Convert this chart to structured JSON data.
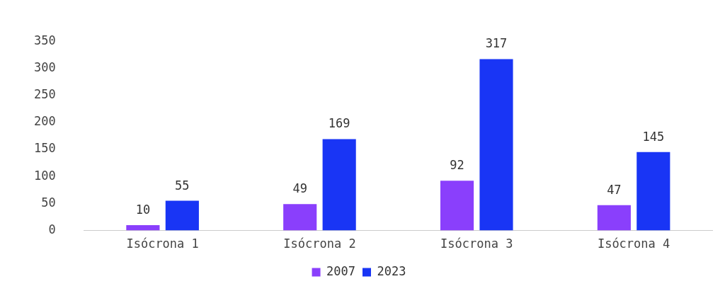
{
  "chart_data": {
    "type": "bar",
    "categories": [
      "Isócrona 1",
      "Isócrona 2",
      "Isócrona 3",
      "Isócrona 4"
    ],
    "series": [
      {
        "name": "2007",
        "color": "#8a3ffc",
        "values": [
          10,
          49,
          92,
          47
        ]
      },
      {
        "name": "2023",
        "color": "#1935f5",
        "values": [
          55,
          169,
          317,
          145
        ]
      }
    ],
    "ylim": [
      0,
      350
    ],
    "yticks": [
      0,
      50,
      100,
      150,
      200,
      250,
      300,
      350
    ],
    "grid": false,
    "legend": "bottom",
    "data_labels": true
  }
}
